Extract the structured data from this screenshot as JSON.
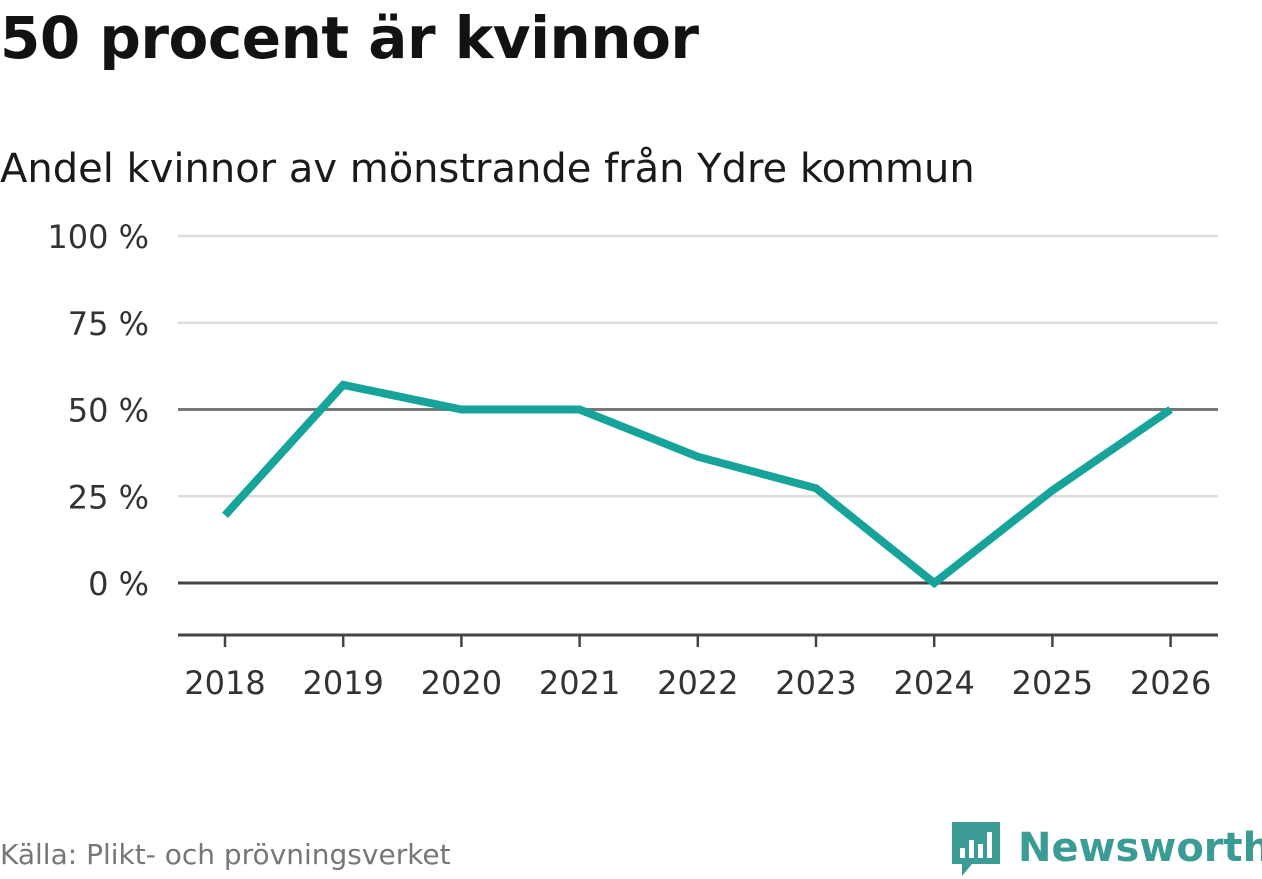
{
  "title": "50 procent är kvinnor",
  "subtitle": "Andel kvinnor av mönstrande från Ydre kommun",
  "source": "Källa: Plikt- och prövningsverket",
  "brand": "Newsworthy",
  "colors": {
    "line": "#16a39a",
    "grid": "#dddddd",
    "zero_line": "#444444",
    "ref_line": "#777777",
    "brand": "#3a9c94"
  },
  "chart_data": {
    "type": "line",
    "x": [
      "2018",
      "2019",
      "2020",
      "2021",
      "2022",
      "2023",
      "2024",
      "2025",
      "2026"
    ],
    "series": [
      {
        "values": [
          19.5,
          57.1,
          50,
          50,
          36.4,
          27.3,
          0,
          26.7,
          50
        ]
      }
    ],
    "yticks": [
      0,
      25,
      50,
      75,
      100
    ],
    "ytick_labels": [
      "0 %",
      "25 %",
      "50 %",
      "75 %",
      "100 %"
    ],
    "ylim": [
      -15,
      100
    ],
    "reference_line": 50,
    "grid": true
  }
}
